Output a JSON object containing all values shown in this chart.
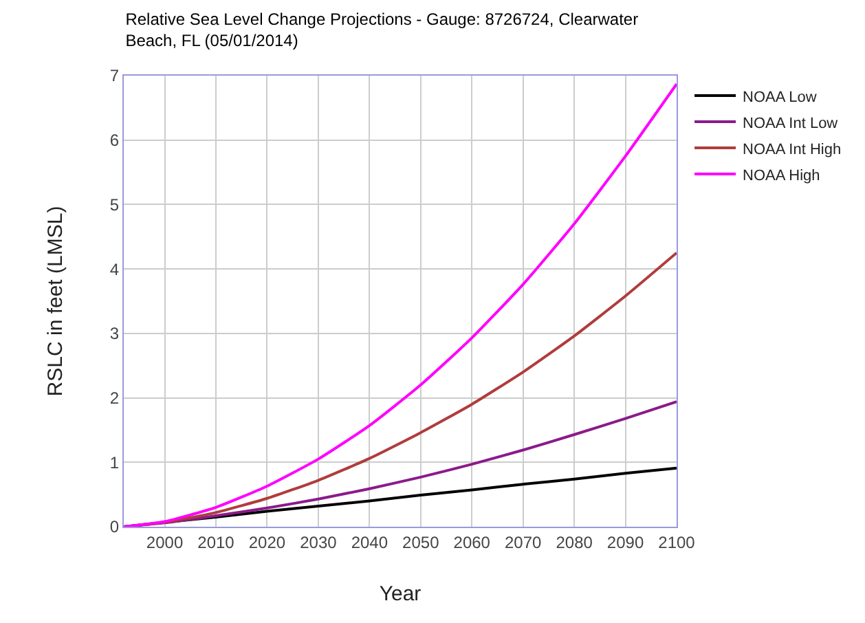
{
  "chart_data": {
    "type": "line",
    "title": "Relative Sea Level Change Projections - Gauge: 8726724, Clearwater\nBeach, FL (05/01/2014)",
    "xlabel": "Year",
    "ylabel": "RSLC in feet (LMSL)",
    "x": [
      1992,
      2000,
      2010,
      2020,
      2030,
      2040,
      2050,
      2060,
      2070,
      2080,
      2090,
      2100
    ],
    "series": [
      {
        "name": "NOAA Low",
        "color": "#000000",
        "values": [
          0,
          0.07,
          0.15,
          0.24,
          0.32,
          0.4,
          0.49,
          0.57,
          0.66,
          0.74,
          0.83,
          0.91
        ]
      },
      {
        "name": "NOAA Int Low",
        "color": "#8b1a8b",
        "values": [
          0,
          0.06,
          0.17,
          0.29,
          0.43,
          0.59,
          0.77,
          0.97,
          1.19,
          1.43,
          1.68,
          1.94
        ]
      },
      {
        "name": "NOAA Int High",
        "color": "#b03c3c",
        "values": [
          0,
          0.07,
          0.22,
          0.44,
          0.72,
          1.06,
          1.46,
          1.9,
          2.4,
          2.96,
          3.58,
          4.25
        ]
      },
      {
        "name": "NOAA High",
        "color": "#ff00ff",
        "values": [
          0,
          0.08,
          0.3,
          0.63,
          1.05,
          1.57,
          2.2,
          2.93,
          3.76,
          4.7,
          5.75,
          6.87
        ]
      }
    ],
    "xlim": [
      1992,
      2100
    ],
    "xticks": [
      2000,
      2010,
      2020,
      2030,
      2040,
      2050,
      2060,
      2070,
      2080,
      2090,
      2100
    ],
    "ylim": [
      0,
      7
    ],
    "yticks": [
      0,
      1,
      2,
      3,
      4,
      5,
      6,
      7
    ],
    "grid": true,
    "legend": "right",
    "marker": "none",
    "line_style": "solid"
  }
}
